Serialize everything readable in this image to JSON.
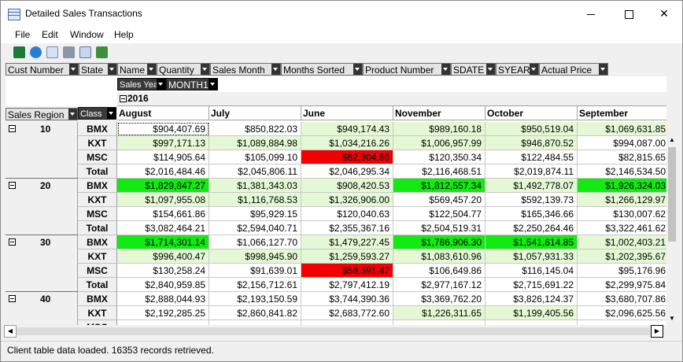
{
  "window": {
    "title": "Detailed Sales Transactions"
  },
  "menu": [
    "File",
    "Edit",
    "Window",
    "Help"
  ],
  "toolbar_icons": [
    "excel-icon",
    "globe-icon",
    "preview-icon",
    "print-icon",
    "copy-icon",
    "chart-icon"
  ],
  "fields": [
    "Cust Number",
    "State",
    "Name",
    "Quantity",
    "Sales Month",
    "Months Sorted",
    "Product Number",
    "SDATE",
    "SYEAR",
    "Actual Price"
  ],
  "pivot": {
    "col_fields": [
      "Sales Year",
      "MONTH1"
    ],
    "row_fields": [
      "Sales Region",
      "Class"
    ],
    "year": "2016",
    "months": [
      "August",
      "July",
      "June",
      "November",
      "October",
      "September"
    ]
  },
  "regions": [
    {
      "region": "10",
      "rows": [
        {
          "class": "BMX",
          "values": [
            "$904,407.69",
            "$850,822.03",
            "$949,174.43",
            "$989,160.18",
            "$950,519.04",
            "$1,069,631.85"
          ],
          "colors": [
            "w",
            "w",
            "lg",
            "lg",
            "lg",
            "lg"
          ]
        },
        {
          "class": "KXT",
          "values": [
            "$997,171.13",
            "$1,089,884.98",
            "$1,034,216.26",
            "$1,006,957.99",
            "$946,870.52",
            "$994,087.00"
          ],
          "colors": [
            "lg",
            "lg",
            "lg",
            "lg",
            "lg",
            "w"
          ]
        },
        {
          "class": "MSC",
          "values": [
            "$114,905.64",
            "$105,099.10",
            "$62,904.66",
            "$120,350.34",
            "$122,484.55",
            "$82,815.65"
          ],
          "colors": [
            "w",
            "w",
            "rd",
            "w",
            "w",
            "w"
          ]
        },
        {
          "class": "Total",
          "values": [
            "$2,016,484.46",
            "$2,045,806.11",
            "$2,046,295.34",
            "$2,116,468.51",
            "$2,019,874.11",
            "$2,146,534.50"
          ],
          "colors": [
            "w",
            "w",
            "w",
            "w",
            "w",
            "w"
          ]
        }
      ]
    },
    {
      "region": "20",
      "rows": [
        {
          "class": "BMX",
          "values": [
            "$1,829,847.27",
            "$1,381,343.03",
            "$908,420.53",
            "$1,812,557.34",
            "$1,492,778.07",
            "$1,926,324.03"
          ],
          "colors": [
            "bg",
            "lg",
            "lg",
            "bg",
            "lg",
            "bg"
          ]
        },
        {
          "class": "KXT",
          "values": [
            "$1,097,955.08",
            "$1,116,768.53",
            "$1,326,906.00",
            "$569,457.20",
            "$592,139.73",
            "$1,266,129.97"
          ],
          "colors": [
            "lg",
            "lg",
            "lg",
            "w",
            "w",
            "lg"
          ]
        },
        {
          "class": "MSC",
          "values": [
            "$154,661.86",
            "$95,929.15",
            "$120,040.63",
            "$122,504.77",
            "$165,346.66",
            "$130,007.62"
          ],
          "colors": [
            "w",
            "w",
            "w",
            "w",
            "w",
            "w"
          ]
        },
        {
          "class": "Total",
          "values": [
            "$3,082,464.21",
            "$2,594,040.71",
            "$2,355,367.16",
            "$2,504,519.31",
            "$2,250,264.46",
            "$3,322,461.62"
          ],
          "colors": [
            "w",
            "w",
            "w",
            "w",
            "w",
            "w"
          ]
        }
      ]
    },
    {
      "region": "30",
      "rows": [
        {
          "class": "BMX",
          "values": [
            "$1,714,301.14",
            "$1,066,127.70",
            "$1,479,227.45",
            "$1,786,906.30",
            "$1,541,614.85",
            "$1,002,403.21"
          ],
          "colors": [
            "bg",
            "w",
            "lg",
            "bg",
            "bg",
            "lg"
          ]
        },
        {
          "class": "KXT",
          "values": [
            "$996,400.47",
            "$998,945.90",
            "$1,259,593.27",
            "$1,083,610.96",
            "$1,057,931.33",
            "$1,202,395.67"
          ],
          "colors": [
            "lg",
            "lg",
            "lg",
            "lg",
            "lg",
            "lg"
          ]
        },
        {
          "class": "MSC",
          "values": [
            "$130,258.24",
            "$91,639.01",
            "$58,591.47",
            "$106,649.86",
            "$116,145.04",
            "$95,176.96"
          ],
          "colors": [
            "w",
            "w",
            "rd",
            "w",
            "w",
            "w"
          ]
        },
        {
          "class": "Total",
          "values": [
            "$2,840,959.85",
            "$2,156,712.61",
            "$2,797,412.19",
            "$2,977,167.12",
            "$2,715,691.22",
            "$2,299,975.84"
          ],
          "colors": [
            "w",
            "w",
            "w",
            "w",
            "w",
            "w"
          ]
        }
      ]
    },
    {
      "region": "40",
      "rows": [
        {
          "class": "BMX",
          "values": [
            "$2,888,044.93",
            "$2,193,150.59",
            "$3,744,390.36",
            "$3,369,762.20",
            "$3,826,124.37",
            "$3,680,707.86"
          ],
          "colors": [
            "w",
            "w",
            "w",
            "w",
            "w",
            "w"
          ]
        },
        {
          "class": "KXT",
          "values": [
            "$2,192,285.25",
            "$2,860,841.82",
            "$2,683,772.60",
            "$1,226,311.65",
            "$1,199,405.56",
            "$2,096,625.56"
          ],
          "colors": [
            "w",
            "w",
            "w",
            "lg",
            "lg",
            "w"
          ]
        },
        {
          "class": "MSC",
          "values": [
            "",
            "",
            "",
            "",
            "",
            ""
          ],
          "colors": [
            "w",
            "w",
            "w",
            "w",
            "w",
            "w"
          ]
        }
      ]
    }
  ],
  "status": "Client table data loaded. 16353 records retrieved."
}
